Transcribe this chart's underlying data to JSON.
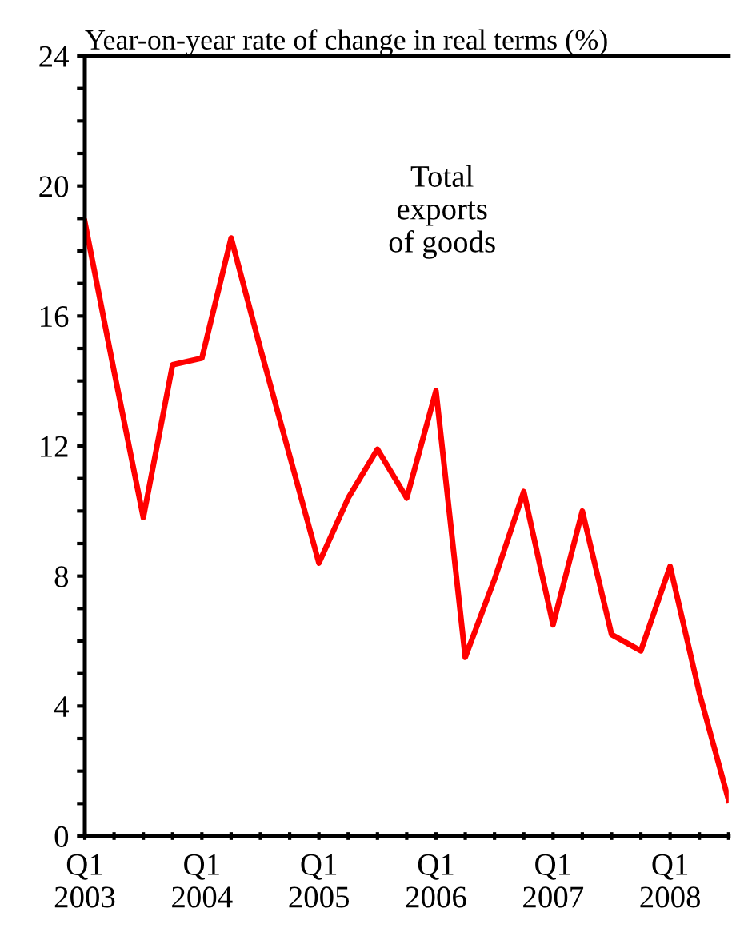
{
  "chart_data": {
    "type": "line",
    "title": "Year-on-year rate of change in real terms (%)",
    "categories": [
      "Q1\n2003",
      null,
      null,
      null,
      "Q1\n2004",
      null,
      null,
      null,
      "Q1\n2005",
      null,
      null,
      null,
      "Q1\n2006",
      null,
      null,
      null,
      "Q1\n2007",
      null,
      null,
      null,
      "Q1\n2008",
      null,
      null
    ],
    "series": [
      {
        "color": "#ff0000",
        "values": [
          18.9,
          14.3,
          9.8,
          14.5,
          14.7,
          18.4,
          15.0,
          11.7,
          8.4,
          10.4,
          11.9,
          10.4,
          13.7,
          5.5,
          7.9,
          10.6,
          6.5,
          10.0,
          6.2,
          5.7,
          8.3,
          4.4,
          1.1
        ]
      }
    ],
    "annotations": [
      "Total\nexports\nof goods"
    ],
    "ylim": [
      0,
      24
    ],
    "yticks": [
      0,
      {
        "value": 1,
        "label": null
      },
      {
        "value": 2,
        "label": null
      },
      {
        "value": 3,
        "label": null
      },
      4,
      {
        "value": 5,
        "label": null
      },
      {
        "value": 6,
        "label": null
      },
      {
        "value": 7,
        "label": null
      },
      8,
      {
        "value": 9,
        "label": null
      },
      {
        "value": 10,
        "label": null
      },
      {
        "value": 11,
        "label": null
      },
      12,
      {
        "value": 13,
        "label": null
      },
      {
        "value": 14,
        "label": null
      },
      {
        "value": 15,
        "label": null
      },
      16,
      {
        "value": 17,
        "label": null
      },
      {
        "value": 18,
        "label": null
      },
      {
        "value": 19,
        "label": null
      },
      20,
      {
        "value": 21,
        "label": null
      },
      {
        "value": 22,
        "label": null
      },
      {
        "value": 23,
        "label": null
      },
      24
    ],
    "marker": "none",
    "line_style": "solid"
  }
}
